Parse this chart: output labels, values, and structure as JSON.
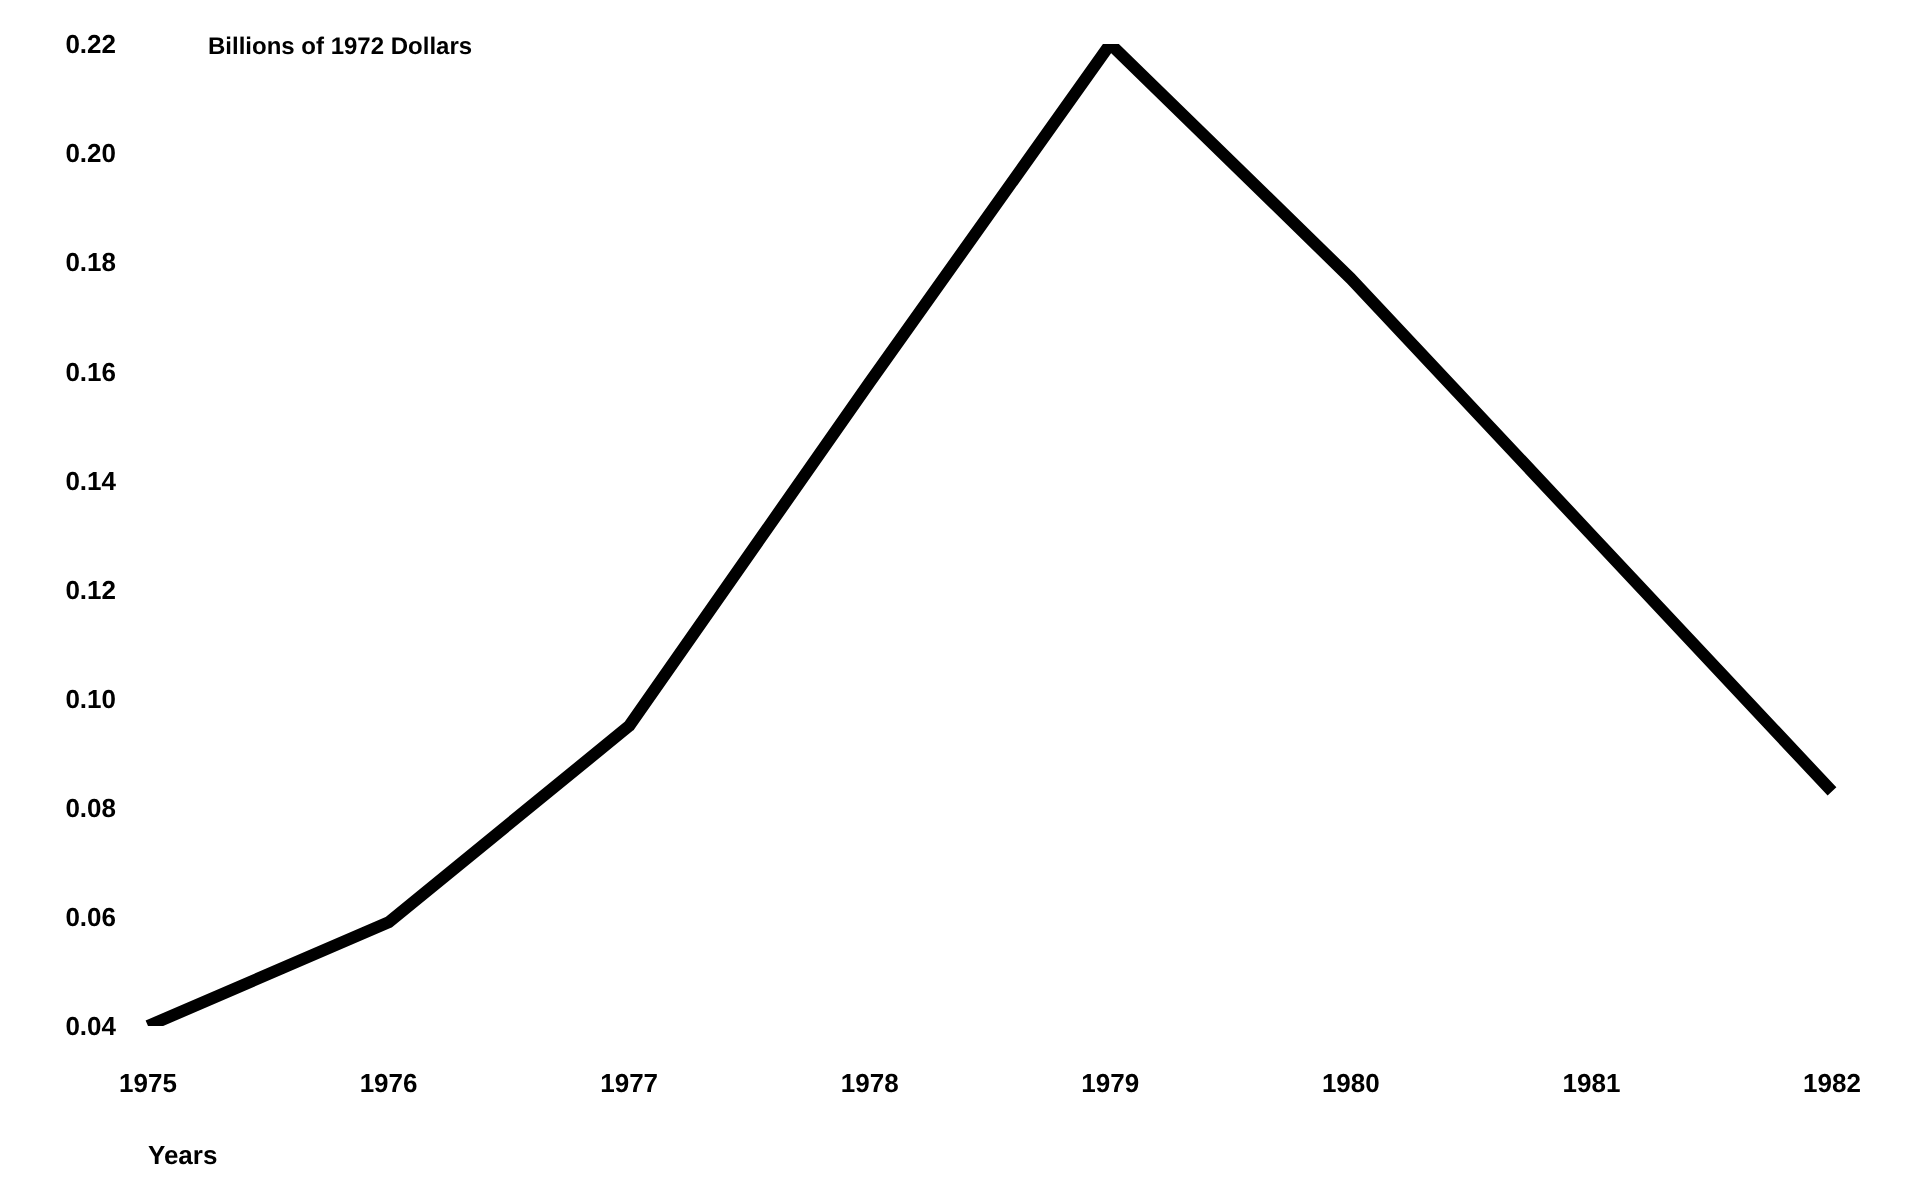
{
  "chart_data": {
    "type": "line",
    "ylabel": "Billions of 1972 Dollars",
    "xlabel": "Years",
    "categories": [
      "1975",
      "1976",
      "1977",
      "1978",
      "1979",
      "1980",
      "1981",
      "1982"
    ],
    "series": [
      {
        "color": "#000000",
        "values": [
          0.04,
          0.059,
          0.095,
          0.158,
          0.22,
          0.177,
          0.13,
          0.083
        ]
      }
    ],
    "ylim": [
      0.04,
      0.22
    ],
    "yticks": [
      0.04,
      0.06,
      0.08,
      {
        "value": 0.1,
        "label": "0.10"
      },
      0.12,
      0.14,
      0.16,
      0.18,
      {
        "value": 0.2,
        "label": "0.20"
      },
      0.22
    ],
    "grid": false,
    "marker": "none",
    "line_style": "solid"
  }
}
